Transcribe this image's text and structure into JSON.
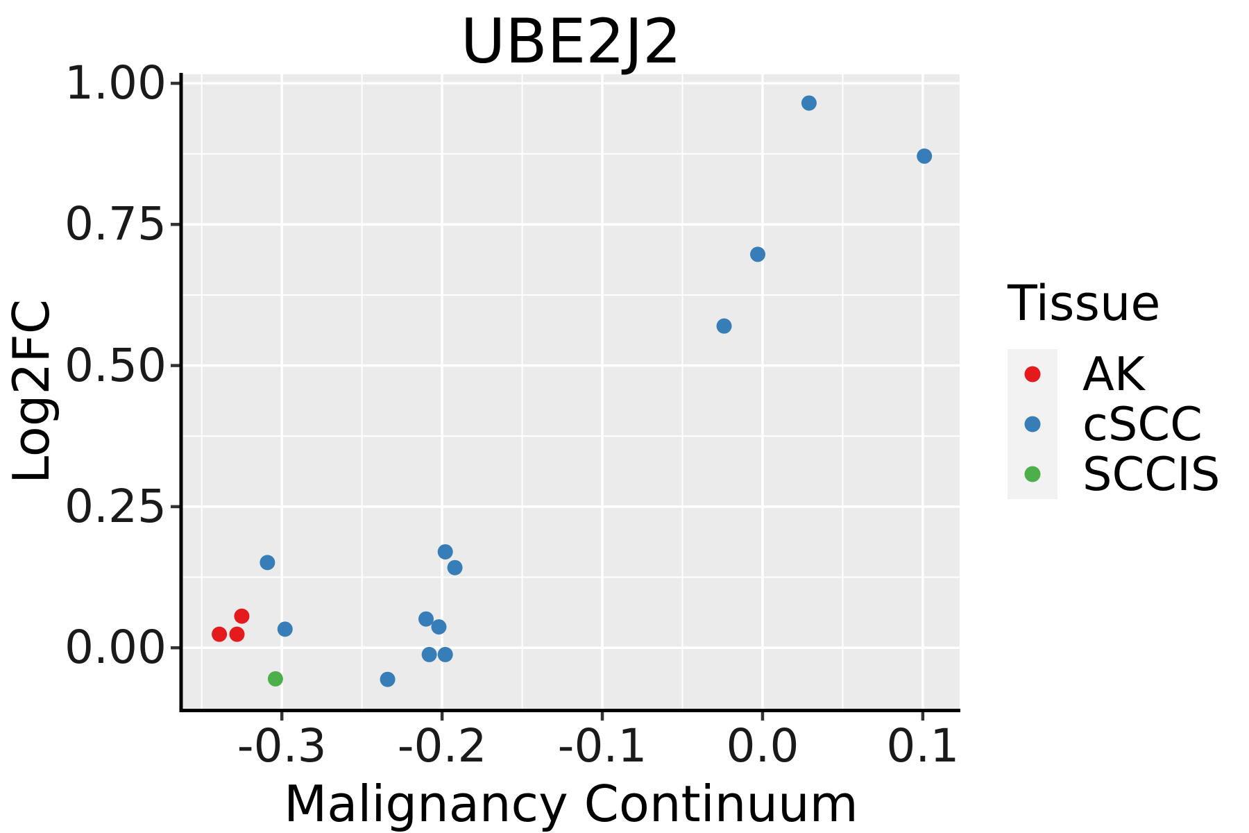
{
  "chart_data": {
    "type": "scatter",
    "title": "UBE2J2",
    "xlabel": "Malignancy Continuum",
    "ylabel": "Log2FC",
    "xlim": [
      -0.362,
      0.123
    ],
    "ylim": [
      -0.108,
      1.016
    ],
    "x_major_ticks": [
      -0.3,
      -0.2,
      -0.1,
      0.0,
      0.1
    ],
    "x_tick_labels": [
      "-0.3",
      "-0.2",
      "-0.1",
      "0.0",
      "0.1"
    ],
    "x_minor_ticks": [
      -0.35,
      -0.25,
      -0.15,
      -0.05,
      0.05
    ],
    "y_major_ticks": [
      0.0,
      0.25,
      0.5,
      0.75,
      1.0
    ],
    "y_tick_labels": [
      "0.00",
      "0.25",
      "0.50",
      "0.75",
      "1.00"
    ],
    "y_minor_ticks": [
      0.125,
      0.375,
      0.625,
      0.875
    ],
    "grid": true,
    "legend_position": "right",
    "legend_title": "Tissue",
    "panel_fill": "#EBEBEB",
    "gridline_color": "#FFFFFF",
    "axis_line_color": "#000000",
    "tick_mark_color": "#333333",
    "point_radius_px": 11,
    "series": [
      {
        "name": "AK",
        "color": "#E41A1C",
        "points": [
          [
            -0.339,
            0.024
          ],
          [
            -0.328,
            0.024
          ],
          [
            -0.325,
            0.056
          ]
        ]
      },
      {
        "name": "cSCC",
        "color": "#377EB8",
        "points": [
          [
            0.029,
            0.965
          ],
          [
            0.101,
            0.871
          ],
          [
            -0.003,
            0.697
          ],
          [
            -0.024,
            0.57
          ],
          [
            -0.309,
            0.151
          ],
          [
            -0.198,
            0.17
          ],
          [
            -0.192,
            0.142
          ],
          [
            -0.298,
            0.033
          ],
          [
            -0.21,
            0.051
          ],
          [
            -0.202,
            0.037
          ],
          [
            -0.208,
            -0.012
          ],
          [
            -0.198,
            -0.012
          ],
          [
            -0.234,
            -0.056
          ]
        ]
      },
      {
        "name": "SCCIS",
        "color": "#4DAF4A",
        "points": [
          [
            -0.304,
            -0.055
          ]
        ]
      }
    ]
  }
}
